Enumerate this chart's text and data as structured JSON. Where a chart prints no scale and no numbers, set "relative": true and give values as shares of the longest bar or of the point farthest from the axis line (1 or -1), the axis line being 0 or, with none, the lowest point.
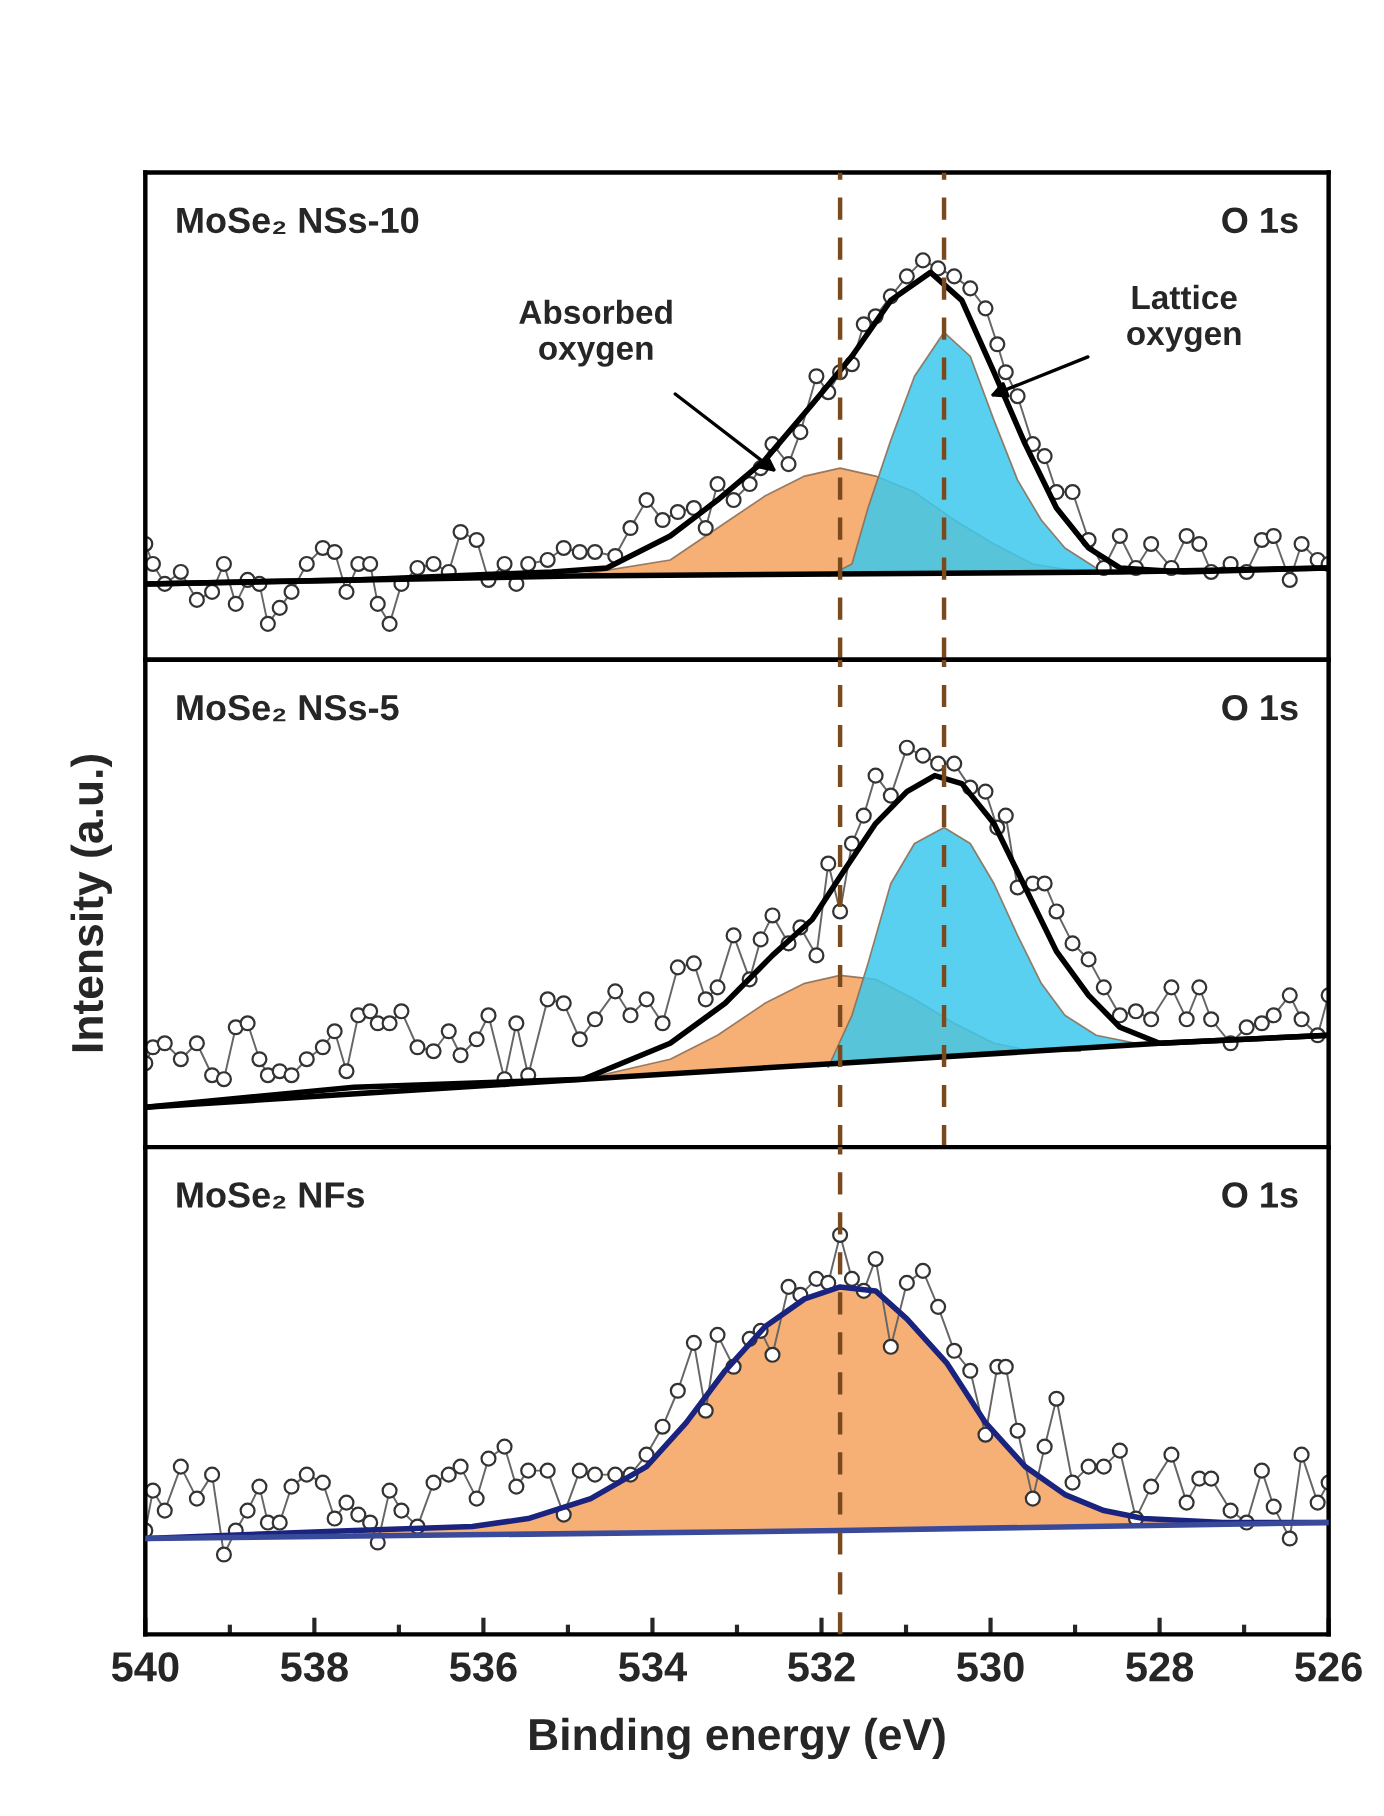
{
  "chart_data": [
    {
      "type": "line",
      "relative": true,
      "title": "MoSe₂ NSs-10",
      "xlim": [
        540,
        526
      ],
      "tick_labels": false,
      "annotations": [
        "O 1s",
        {
          "text": "Absorbed\noxygen",
          "x": 532.53,
          "y": 0.47
        },
        {
          "text": "Lattice\noxygen",
          "x": 530.01,
          "y": 0.66
        }
      ],
      "ref_lines": [
        {
          "axis": "x",
          "value": 531.78,
          "color": "#7a4a1e",
          "line_style": "dashed"
        },
        {
          "axis": "x",
          "value": 530.55,
          "color": "#7a4a1e",
          "line_style": "dashed"
        }
      ],
      "series": [
        {
          "type": "area",
          "color": "#f5a25d",
          "x": [
            534.95,
            533.79,
            533.23,
            532.67,
            532.2,
            531.78,
            531.36,
            530.9,
            530.43,
            529.96,
            529.5,
            528.94,
            528.47
          ],
          "values": [
            0.21,
            0.25,
            0.33,
            0.41,
            0.46,
            0.48,
            0.46,
            0.42,
            0.35,
            0.29,
            0.24,
            0.22,
            0.22
          ]
        },
        {
          "type": "area",
          "color": "#3cc8ec",
          "x": [
            531.92,
            531.64,
            531.45,
            531.18,
            530.9,
            530.55,
            530.24,
            529.96,
            529.68,
            529.4,
            529.12,
            528.75,
            528.47
          ],
          "values": [
            0.21,
            0.24,
            0.38,
            0.55,
            0.71,
            0.82,
            0.76,
            0.6,
            0.45,
            0.35,
            0.28,
            0.23,
            0.22
          ]
        },
        {
          "type": "line",
          "color": "#666666",
          "marker": "circle",
          "x": [
            540.0,
            539.91,
            539.77,
            539.58,
            539.39,
            539.21,
            539.07,
            538.93,
            538.79,
            538.65,
            538.55,
            538.41,
            538.27,
            538.09,
            537.9,
            537.76,
            537.62,
            537.48,
            537.34,
            537.25,
            537.11,
            536.97,
            536.78,
            536.59,
            536.41,
            536.27,
            536.08,
            535.94,
            535.75,
            535.61,
            535.47,
            535.24,
            535.05,
            534.86,
            534.68,
            534.44,
            534.26,
            534.07,
            533.88,
            533.7,
            533.51,
            533.37,
            533.23,
            533.04,
            532.85,
            532.72,
            532.58,
            532.39,
            532.25,
            532.06,
            531.92,
            531.78,
            531.64,
            531.5,
            531.36,
            531.18,
            530.99,
            530.8,
            530.62,
            530.43,
            530.24,
            530.06,
            529.92,
            529.82,
            529.68,
            529.5,
            529.36,
            529.22,
            529.03,
            528.84,
            528.66,
            528.47,
            528.28,
            528.1,
            527.86,
            527.68,
            527.53,
            527.39,
            527.16,
            526.97,
            526.79,
            526.65,
            526.46,
            526.32,
            526.13,
            526.0
          ],
          "values": [
            0.29,
            0.24,
            0.19,
            0.22,
            0.15,
            0.17,
            0.24,
            0.14,
            0.2,
            0.19,
            0.09,
            0.13,
            0.17,
            0.24,
            0.28,
            0.27,
            0.17,
            0.24,
            0.24,
            0.14,
            0.09,
            0.19,
            0.23,
            0.24,
            0.22,
            0.32,
            0.3,
            0.2,
            0.24,
            0.19,
            0.24,
            0.25,
            0.28,
            0.27,
            0.27,
            0.26,
            0.33,
            0.4,
            0.35,
            0.37,
            0.38,
            0.33,
            0.44,
            0.4,
            0.44,
            0.48,
            0.54,
            0.49,
            0.57,
            0.71,
            0.67,
            0.72,
            0.74,
            0.84,
            0.86,
            0.91,
            0.96,
            1.0,
            0.98,
            0.96,
            0.93,
            0.88,
            0.79,
            0.72,
            0.66,
            0.54,
            0.51,
            0.42,
            0.42,
            0.3,
            0.23,
            0.31,
            0.23,
            0.29,
            0.23,
            0.31,
            0.29,
            0.22,
            0.24,
            0.22,
            0.3,
            0.31,
            0.2,
            0.29,
            0.25,
            0.24
          ]
        },
        {
          "color": "#000000",
          "x": [
            540,
            537.53,
            535.19,
            534.54,
            533.79,
            533.23,
            532.67,
            532.11,
            531.64,
            531.18,
            530.71,
            530.34,
            529.96,
            529.59,
            529.22,
            528.84,
            528.47,
            527.72,
            526
          ],
          "values": [
            0.19,
            0.2,
            0.22,
            0.23,
            0.31,
            0.4,
            0.5,
            0.64,
            0.76,
            0.9,
            0.97,
            0.9,
            0.72,
            0.54,
            0.38,
            0.28,
            0.23,
            0.22,
            0.23
          ]
        },
        {
          "color": "#000000",
          "x": [
            540,
            534.95,
            528.47,
            526
          ],
          "values": [
            0.19,
            0.21,
            0.22,
            0.23
          ]
        }
      ]
    },
    {
      "type": "line",
      "relative": true,
      "title": "MoSe₂ NSs-5",
      "xlim": [
        540,
        526
      ],
      "tick_labels": false,
      "ylabel": "Intensity (a.u.)",
      "annotations": [
        "O 1s"
      ],
      "ref_lines": [
        {
          "axis": "x",
          "value": 531.78,
          "color": "#7a4a1e",
          "line_style": "dashed"
        },
        {
          "axis": "x",
          "value": 530.55,
          "color": "#7a4a1e",
          "line_style": "dashed"
        }
      ],
      "series": [
        {
          "type": "area",
          "color": "#f5a25d",
          "x": [
            534.82,
            533.79,
            533.23,
            532.67,
            532.2,
            531.78,
            531.36,
            530.9,
            530.43,
            529.96,
            529.5,
            528.94
          ],
          "values": [
            0.17,
            0.22,
            0.28,
            0.36,
            0.41,
            0.43,
            0.42,
            0.37,
            0.31,
            0.26,
            0.24,
            0.24
          ]
        },
        {
          "type": "area",
          "color": "#3cc8ec",
          "x": [
            531.92,
            531.64,
            531.45,
            531.18,
            530.9,
            530.55,
            530.24,
            529.96,
            529.68,
            529.4,
            529.12,
            528.75,
            528.28
          ],
          "values": [
            0.2,
            0.33,
            0.46,
            0.66,
            0.76,
            0.8,
            0.76,
            0.66,
            0.53,
            0.41,
            0.33,
            0.28,
            0.26
          ]
        },
        {
          "type": "line",
          "color": "#666666",
          "marker": "circle",
          "x": [
            540.0,
            539.91,
            539.77,
            539.58,
            539.39,
            539.21,
            539.07,
            538.93,
            538.79,
            538.65,
            538.55,
            538.41,
            538.27,
            538.09,
            537.9,
            537.76,
            537.62,
            537.48,
            537.34,
            537.25,
            537.11,
            536.97,
            536.78,
            536.59,
            536.41,
            536.27,
            536.08,
            535.94,
            535.75,
            535.61,
            535.47,
            535.24,
            535.05,
            534.86,
            534.68,
            534.44,
            534.26,
            534.07,
            533.88,
            533.7,
            533.51,
            533.37,
            533.23,
            533.04,
            532.85,
            532.72,
            532.58,
            532.39,
            532.25,
            532.06,
            531.92,
            531.78,
            531.64,
            531.5,
            531.36,
            531.18,
            530.99,
            530.8,
            530.62,
            530.43,
            530.24,
            530.06,
            529.92,
            529.82,
            529.68,
            529.5,
            529.36,
            529.22,
            529.03,
            528.84,
            528.66,
            528.47,
            528.28,
            528.1,
            527.86,
            527.68,
            527.53,
            527.39,
            527.16,
            526.97,
            526.79,
            526.65,
            526.46,
            526.32,
            526.13,
            526.0
          ],
          "values": [
            0.21,
            0.25,
            0.26,
            0.22,
            0.26,
            0.18,
            0.17,
            0.3,
            0.31,
            0.22,
            0.18,
            0.19,
            0.18,
            0.22,
            0.25,
            0.29,
            0.19,
            0.33,
            0.34,
            0.31,
            0.31,
            0.34,
            0.25,
            0.24,
            0.29,
            0.23,
            0.27,
            0.33,
            0.17,
            0.31,
            0.18,
            0.37,
            0.36,
            0.27,
            0.32,
            0.39,
            0.33,
            0.37,
            0.31,
            0.45,
            0.46,
            0.37,
            0.4,
            0.53,
            0.42,
            0.52,
            0.58,
            0.51,
            0.55,
            0.48,
            0.71,
            0.59,
            0.76,
            0.83,
            0.93,
            0.88,
            1.0,
            0.98,
            0.96,
            0.96,
            0.9,
            0.89,
            0.8,
            0.83,
            0.65,
            0.66,
            0.66,
            0.59,
            0.51,
            0.47,
            0.4,
            0.33,
            0.34,
            0.32,
            0.4,
            0.32,
            0.4,
            0.32,
            0.26,
            0.3,
            0.31,
            0.33,
            0.38,
            0.32,
            0.28,
            0.38
          ]
        },
        {
          "color": "#000000",
          "x": [
            540,
            537.53,
            534.82,
            533.79,
            533.14,
            532.58,
            532.11,
            531.74,
            531.36,
            530.99,
            530.66,
            530.34,
            529.96,
            529.59,
            529.22,
            528.84,
            528.47,
            528.0,
            526
          ],
          "values": [
            0.1,
            0.15,
            0.17,
            0.26,
            0.36,
            0.48,
            0.57,
            0.69,
            0.81,
            0.89,
            0.93,
            0.91,
            0.81,
            0.65,
            0.49,
            0.38,
            0.3,
            0.26,
            0.28
          ]
        },
        {
          "color": "#000000",
          "x": [
            540,
            534.82,
            531.78,
            528.0,
            526
          ],
          "values": [
            0.1,
            0.17,
            0.21,
            0.26,
            0.28
          ]
        }
      ]
    },
    {
      "type": "line",
      "relative": true,
      "title": "MoSe₂ NFs",
      "xlim": [
        540,
        526
      ],
      "tick_labels": "x",
      "xlabel": "Binding energy (eV)",
      "xticks": [
        540,
        {
          "value": 539,
          "label": null
        },
        538,
        {
          "value": 537,
          "label": null
        },
        536,
        {
          "value": 535,
          "label": null
        },
        534,
        {
          "value": 533,
          "label": null
        },
        532,
        {
          "value": 531,
          "label": null
        },
        530,
        {
          "value": 529,
          "label": null
        },
        528,
        {
          "value": 527,
          "label": null
        },
        526
      ],
      "annotations": [
        "O 1s"
      ],
      "ref_lines": [
        {
          "axis": "x",
          "value": 531.78,
          "color": "#7a4a1e",
          "line_style": "dashed"
        }
      ],
      "series": [
        {
          "type": "area",
          "color": "#f5a25d",
          "x": [
            537.53,
            536.13,
            535.47,
            534.73,
            534.07,
            533.6,
            533.14,
            532.67,
            532.2,
            531.78,
            531.36,
            530.99,
            530.52,
            530.06,
            529.59,
            529.12,
            528.66,
            528.19,
            527.25
          ],
          "values": [
            0.26,
            0.27,
            0.29,
            0.34,
            0.42,
            0.53,
            0.66,
            0.77,
            0.84,
            0.87,
            0.86,
            0.79,
            0.68,
            0.53,
            0.42,
            0.35,
            0.31,
            0.29,
            0.28
          ]
        },
        {
          "type": "line",
          "color": "#666666",
          "marker": "circle",
          "x": [
            540.0,
            539.91,
            539.77,
            539.58,
            539.39,
            539.21,
            539.07,
            538.93,
            538.79,
            538.65,
            538.55,
            538.41,
            538.27,
            538.09,
            537.9,
            537.76,
            537.62,
            537.48,
            537.34,
            537.25,
            537.11,
            536.97,
            536.78,
            536.59,
            536.41,
            536.27,
            536.08,
            535.94,
            535.75,
            535.61,
            535.47,
            535.24,
            535.05,
            534.86,
            534.68,
            534.44,
            534.26,
            534.07,
            533.88,
            533.7,
            533.51,
            533.37,
            533.23,
            533.04,
            532.85,
            532.72,
            532.58,
            532.39,
            532.25,
            532.06,
            531.92,
            531.78,
            531.64,
            531.5,
            531.36,
            531.18,
            530.99,
            530.8,
            530.62,
            530.43,
            530.24,
            530.06,
            529.92,
            529.82,
            529.68,
            529.5,
            529.36,
            529.22,
            529.03,
            528.84,
            528.66,
            528.47,
            528.28,
            528.1,
            527.86,
            527.68,
            527.53,
            527.39,
            527.16,
            526.97,
            526.79,
            526.65,
            526.46,
            526.32,
            526.13,
            526.0
          ],
          "values": [
            0.26,
            0.36,
            0.31,
            0.42,
            0.34,
            0.4,
            0.2,
            0.26,
            0.31,
            0.37,
            0.28,
            0.28,
            0.37,
            0.4,
            0.38,
            0.29,
            0.33,
            0.3,
            0.28,
            0.23,
            0.36,
            0.31,
            0.27,
            0.38,
            0.4,
            0.42,
            0.34,
            0.44,
            0.47,
            0.37,
            0.41,
            0.41,
            0.3,
            0.41,
            0.4,
            0.4,
            0.4,
            0.45,
            0.52,
            0.61,
            0.73,
            0.56,
            0.75,
            0.67,
            0.74,
            0.76,
            0.7,
            0.87,
            0.85,
            0.89,
            0.88,
            1.0,
            0.89,
            0.86,
            0.94,
            0.72,
            0.88,
            0.91,
            0.82,
            0.71,
            0.66,
            0.5,
            0.67,
            0.67,
            0.51,
            0.34,
            0.47,
            0.59,
            0.38,
            0.42,
            0.42,
            0.46,
            0.29,
            0.37,
            0.45,
            0.33,
            0.39,
            0.39,
            0.31,
            0.28,
            0.41,
            0.32,
            0.24,
            0.45,
            0.33,
            0.38
          ]
        },
        {
          "color": "#1a237e",
          "x": [
            540,
            537.53,
            536.13,
            535.47,
            534.73,
            534.07,
            533.6,
            533.14,
            532.67,
            532.2,
            531.78,
            531.36,
            530.99,
            530.52,
            530.06,
            529.59,
            529.12,
            528.66,
            528.19,
            527.25,
            526
          ],
          "values": [
            0.24,
            0.26,
            0.27,
            0.29,
            0.34,
            0.42,
            0.53,
            0.66,
            0.77,
            0.84,
            0.87,
            0.86,
            0.79,
            0.68,
            0.53,
            0.42,
            0.35,
            0.31,
            0.29,
            0.28,
            0.28
          ]
        },
        {
          "color": "#3a4a9a",
          "x": [
            540,
            531.78,
            526
          ],
          "values": [
            0.24,
            0.26,
            0.28
          ]
        }
      ]
    }
  ]
}
